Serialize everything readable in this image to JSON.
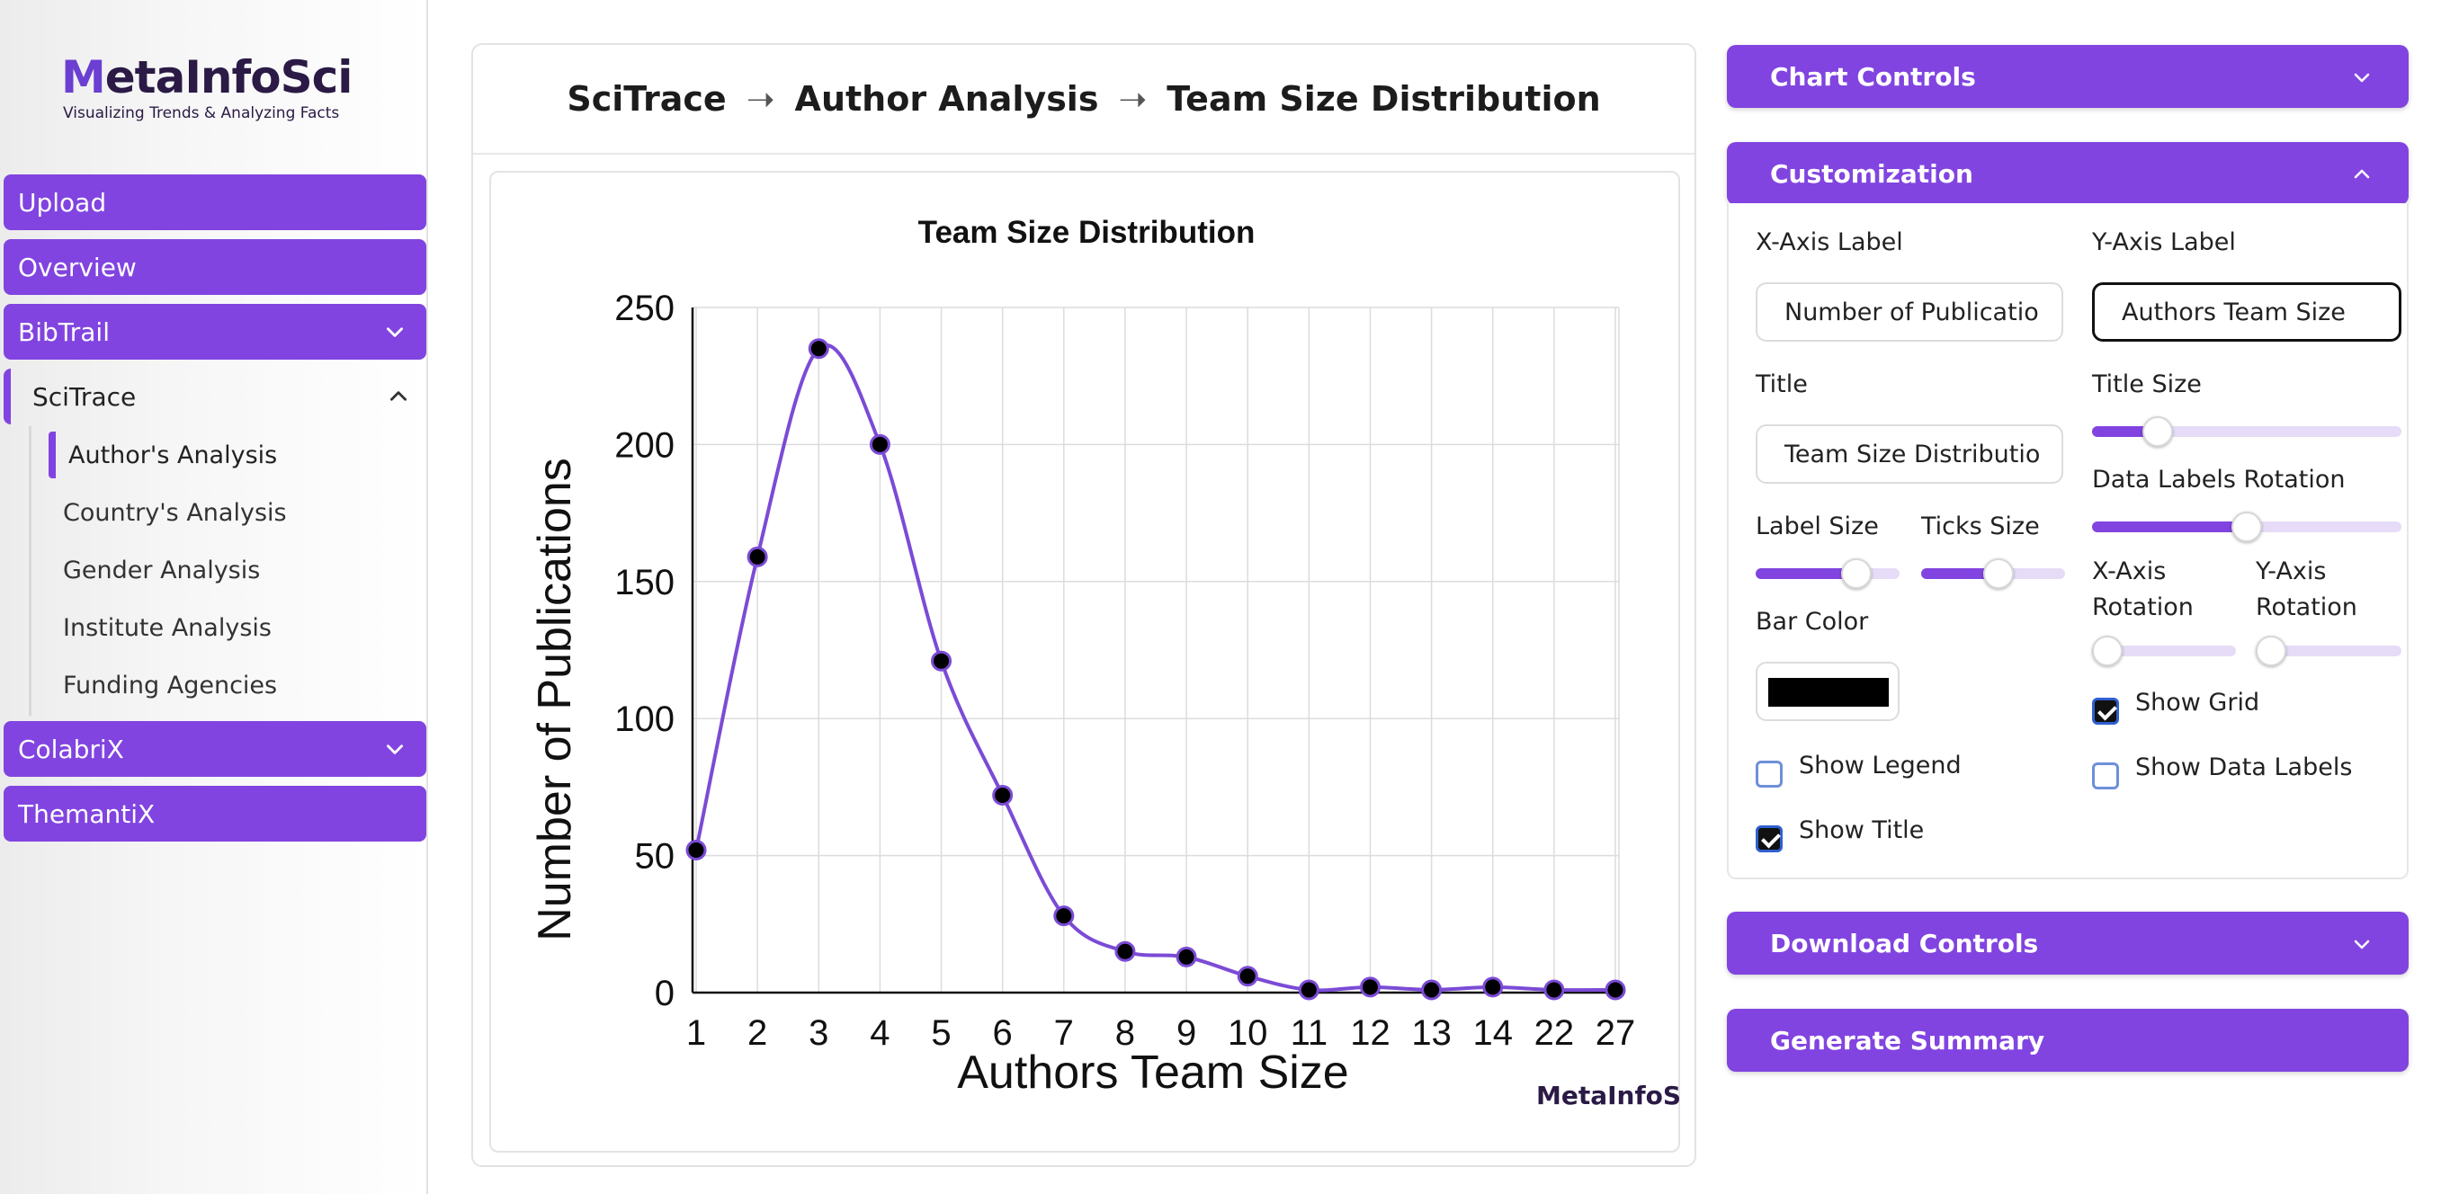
{
  "brand": {
    "logo_word_prefix": "M",
    "logo_word_main": "etaInfoSci",
    "tagline": "Visualizing Trends & Analyzing Facts"
  },
  "sidebar": {
    "items": [
      {
        "label": "Upload"
      },
      {
        "label": "Overview"
      },
      {
        "label": "BibTrail",
        "icon": "chevron-down-icon"
      },
      {
        "label": "SciTrace",
        "icon": "chevron-up-icon",
        "expanded": true
      },
      {
        "label": "ColabriX",
        "icon": "chevron-down-icon"
      },
      {
        "label": "ThemantiX"
      }
    ],
    "scitrace_sub": [
      {
        "label": "Author's Analysis",
        "active": true
      },
      {
        "label": "Country's Analysis"
      },
      {
        "label": "Gender Analysis"
      },
      {
        "label": "Institute Analysis"
      },
      {
        "label": "Funding Agencies"
      }
    ]
  },
  "breadcrumb": {
    "part1": "SciTrace",
    "part2": "Author Analysis",
    "part3": "Team Size Distribution",
    "separator": "➝"
  },
  "chart_data": {
    "type": "line",
    "title": "Team Size Distribution",
    "xlabel": "Authors Team Size",
    "ylabel": "Number of Publications",
    "categories": [
      "1",
      "2",
      "3",
      "4",
      "5",
      "6",
      "7",
      "8",
      "9",
      "10",
      "11",
      "12",
      "13",
      "14",
      "22",
      "27"
    ],
    "series": [
      {
        "values": [
          52,
          159,
          235,
          200,
          121,
          72,
          28,
          15,
          13,
          6,
          1,
          2,
          1,
          2,
          1,
          1
        ]
      }
    ],
    "ylim": [
      0,
      250
    ],
    "yticks": [
      0,
      50,
      100,
      150,
      200,
      250
    ],
    "grid": true,
    "legend": false,
    "line_color": "#7b4bd6",
    "marker_color": "#000000",
    "watermark": "MetaInfoSci"
  },
  "panel": {
    "chart_controls": "Chart Controls",
    "customization": "Customization",
    "download_controls": "Download Controls",
    "generate_summary": "Generate Summary",
    "x_axis_label": {
      "label": "X-Axis Label",
      "value": "Number of Publicatio"
    },
    "y_axis_label": {
      "label": "Y-Axis Label",
      "value": "Authors Team Size"
    },
    "title_field": {
      "label": "Title",
      "value": "Team Size Distributio"
    },
    "title_size": {
      "label": "Title Size",
      "level": 0.18
    },
    "data_labels_rotation": {
      "label": "Data Labels Rotation",
      "level": 0.5
    },
    "label_size": {
      "label": "Label Size",
      "level": 0.75
    },
    "ticks_size": {
      "label": "Ticks Size",
      "level": 0.55
    },
    "x_axis_rotation": {
      "label_line1": "X-Axis",
      "label_line2": "Rotation",
      "level": 0.0
    },
    "y_axis_rotation": {
      "label_line1": "Y-Axis",
      "label_line2": "Rotation",
      "level": 0.0
    },
    "bar_color": {
      "label": "Bar Color",
      "value": "#000000"
    },
    "show_grid": {
      "label": "Show Grid",
      "checked": true
    },
    "show_legend": {
      "label": "Show Legend",
      "checked": false
    },
    "show_data_labels": {
      "label": "Show Data Labels",
      "checked": false
    },
    "show_title": {
      "label": "Show Title",
      "checked": true
    }
  },
  "colors": {
    "accent": "#8144e0"
  }
}
